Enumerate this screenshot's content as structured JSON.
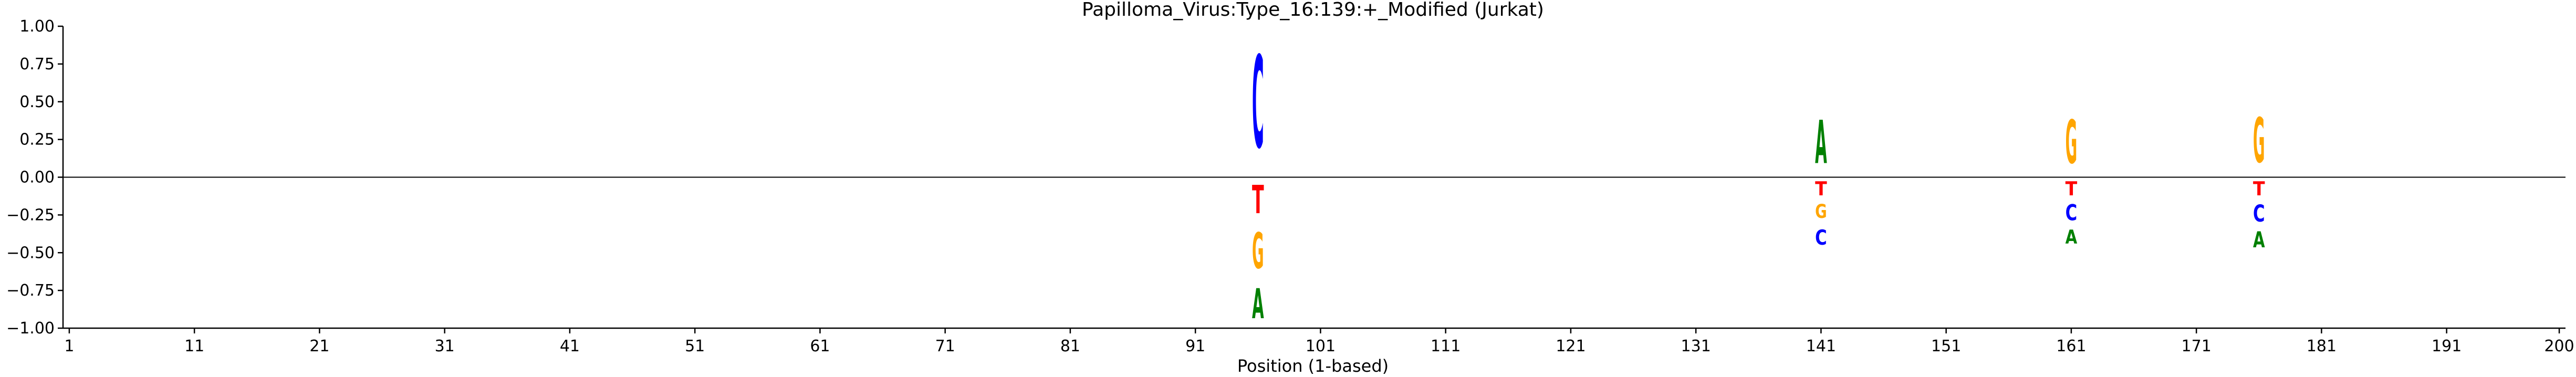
{
  "chart_data": {
    "type": "sequence-logo",
    "title": "Papilloma_Virus:Type_16:139:+_Modified  (Jurkat)",
    "xlabel": "Position (1-based)",
    "ylabel": "",
    "xlim": [
      1,
      200
    ],
    "ylim": [
      -1.0,
      1.0
    ],
    "x_ticks": [
      1,
      11,
      21,
      31,
      41,
      51,
      61,
      71,
      81,
      91,
      101,
      111,
      121,
      131,
      141,
      151,
      161,
      171,
      181,
      191,
      200
    ],
    "x_tick_labels": [
      "1",
      "11",
      "21",
      "31",
      "41",
      "51",
      "61",
      "71",
      "81",
      "91",
      "101",
      "111",
      "121",
      "131",
      "141",
      "151",
      "161",
      "171",
      "181",
      "191",
      "200"
    ],
    "y_ticks": [
      1.0,
      0.75,
      0.5,
      0.25,
      0.0,
      -0.25,
      -0.5,
      -0.75,
      -1.0
    ],
    "y_tick_labels": [
      "1.00",
      "0.75",
      "0.50",
      "0.25",
      "0.00",
      "−0.25",
      "−0.50",
      "−0.75",
      "−1.00"
    ],
    "zero_line": true,
    "colors": {
      "A": "#008000",
      "C": "#0000ff",
      "G": "#ffa500",
      "T": "#ff0000"
    },
    "positions": [
      {
        "x": 96,
        "letters": [
          {
            "base": "C",
            "y0": 0.0,
            "y1": 0.98
          },
          {
            "base": "T",
            "y0": -0.3,
            "y1": 0.0
          },
          {
            "base": "G",
            "y0": -0.68,
            "y1": -0.3
          },
          {
            "base": "A",
            "y0": -1.0,
            "y1": -0.68
          }
        ]
      },
      {
        "x": 141,
        "letters": [
          {
            "base": "A",
            "y0": 0.0,
            "y1": 0.46
          },
          {
            "base": "T",
            "y0": -0.15,
            "y1": 0.0
          },
          {
            "base": "G",
            "y0": -0.3,
            "y1": -0.15
          },
          {
            "base": "C",
            "y0": -0.48,
            "y1": -0.32
          }
        ]
      },
      {
        "x": 161,
        "letters": [
          {
            "base": "G",
            "y0": 0.0,
            "y1": 0.46
          },
          {
            "base": "T",
            "y0": -0.15,
            "y1": 0.0
          },
          {
            "base": "C",
            "y0": -0.32,
            "y1": -0.15
          },
          {
            "base": "A",
            "y0": -0.47,
            "y1": -0.32
          }
        ]
      },
      {
        "x": 176,
        "letters": [
          {
            "base": "G",
            "y0": 0.0,
            "y1": 0.48
          },
          {
            "base": "T",
            "y0": -0.15,
            "y1": 0.0
          },
          {
            "base": "C",
            "y0": -0.33,
            "y1": -0.15
          },
          {
            "base": "A",
            "y0": -0.5,
            "y1": -0.33
          }
        ]
      }
    ]
  }
}
